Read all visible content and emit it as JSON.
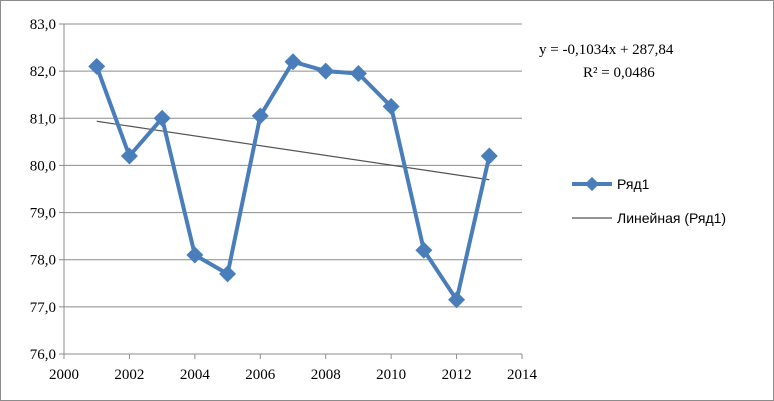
{
  "chart_data": {
    "type": "line",
    "title": "",
    "xlabel": "",
    "ylabel": "",
    "xlim": [
      2000,
      2014
    ],
    "ylim": [
      76.0,
      83.0
    ],
    "x_ticks": [
      "2000",
      "2002",
      "2004",
      "2006",
      "2008",
      "2010",
      "2012",
      "2014"
    ],
    "y_ticks": [
      "76,0",
      "77,0",
      "78,0",
      "79,0",
      "80,0",
      "81,0",
      "82,0",
      "83,0"
    ],
    "grid": "horizontal",
    "legend_position": "right",
    "series": [
      {
        "name": "Ряд1",
        "color": "#4a7ebb",
        "marker": "diamond",
        "x": [
          2001,
          2002,
          2003,
          2004,
          2005,
          2006,
          2007,
          2008,
          2009,
          2010,
          2011,
          2012,
          2013
        ],
        "y": [
          82.1,
          80.2,
          81.0,
          78.1,
          77.7,
          81.05,
          82.2,
          82.0,
          81.95,
          81.25,
          78.2,
          77.15,
          80.2
        ]
      }
    ],
    "trendline": {
      "name": "Линейная (Ряд1)",
      "color": "#555555",
      "slope": -0.1034,
      "intercept": 287.84,
      "x_range": [
        2001,
        2013
      ]
    },
    "annotations": {
      "equation": "y = -0,1034x + 287,84",
      "r2": "R² = 0,0486"
    }
  }
}
